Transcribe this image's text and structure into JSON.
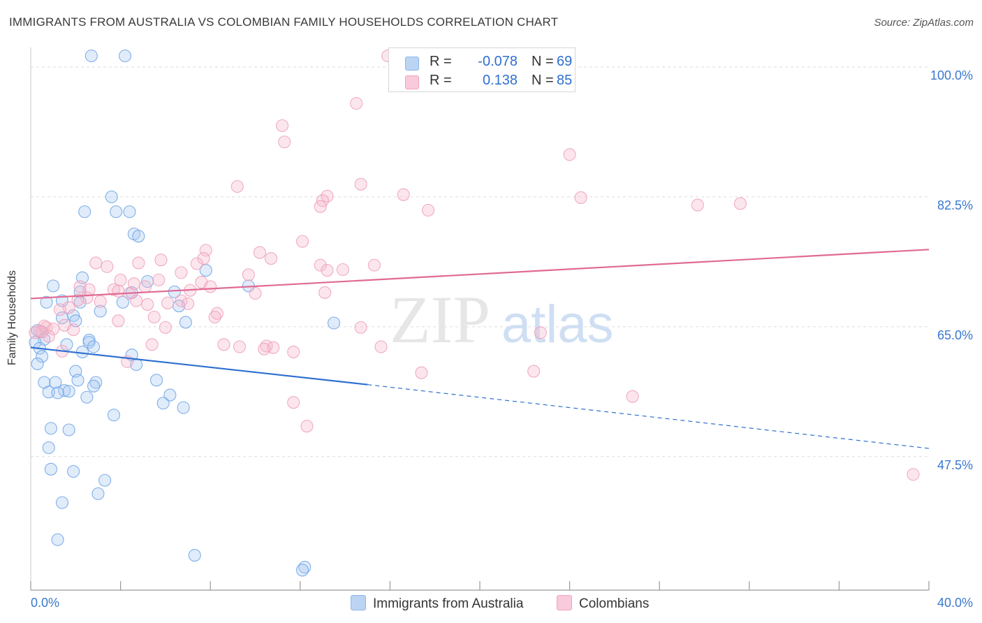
{
  "title": "IMMIGRANTS FROM AUSTRALIA VS COLOMBIAN FAMILY HOUSEHOLDS CORRELATION CHART",
  "source": "Source: ZipAtlas.com",
  "watermark": {
    "zip": "ZIP",
    "atlas": "atlas"
  },
  "legend": {
    "rows": [
      {
        "r_label": "R =",
        "r_value": "-0.078",
        "n_label": "N =",
        "n_value": "69",
        "color": "#a9c8f0"
      },
      {
        "r_label": "R =",
        "r_value": "0.138",
        "n_label": "N =",
        "n_value": "85",
        "color": "#f6b6cb"
      }
    ]
  },
  "bottom_legend": [
    "Immigrants from Australia",
    "Colombians"
  ],
  "colors": {
    "blue": "#6aa3e6",
    "blue_line": "#2d6fd0",
    "pink": "#ee9fb8",
    "pink_line": "#e06a93",
    "tick_text": "#3a78cf",
    "grid": "#dedede"
  },
  "chart_data": {
    "type": "scatter",
    "title": "IMMIGRANTS FROM AUSTRALIA VS COLOMBIAN FAMILY HOUSEHOLDS CORRELATION CHART",
    "xlabel": "",
    "ylabel": "Family Households",
    "xlim": [
      0,
      40
    ],
    "ylim": [
      29.5,
      101.5
    ],
    "x_tick_labels": [
      "0.0%",
      "40.0%"
    ],
    "y_ticks": [
      47.5,
      65.0,
      82.5,
      100.0
    ],
    "y_tick_labels": [
      "47.5%",
      "65.0%",
      "82.5%",
      "100.0%"
    ],
    "grid": true,
    "series": [
      {
        "name": "Immigrants from Australia",
        "color": "#6aa3e6",
        "r": -0.078,
        "n": 69,
        "trend": {
          "x0": 0,
          "y0": 62.2,
          "x1": 15,
          "y1": 57.2,
          "dash_x1": 40,
          "dash_y1": 48.6
        },
        "points": [
          [
            2.7,
            101.5
          ],
          [
            4.2,
            101.5
          ],
          [
            3.6,
            82.5
          ],
          [
            2.4,
            80.5
          ],
          [
            3.8,
            80.5
          ],
          [
            4.4,
            80.5
          ],
          [
            4.6,
            77.5
          ],
          [
            4.8,
            77.2
          ],
          [
            7.8,
            72.6
          ],
          [
            2.3,
            71.6
          ],
          [
            5.2,
            71.1
          ],
          [
            1.0,
            70.5
          ],
          [
            9.7,
            70.5
          ],
          [
            2.2,
            69.7
          ],
          [
            4.5,
            69.6
          ],
          [
            6.4,
            69.7
          ],
          [
            1.4,
            68.5
          ],
          [
            2.2,
            68.3
          ],
          [
            4.1,
            68.3
          ],
          [
            6.6,
            67.8
          ],
          [
            0.7,
            68.3
          ],
          [
            3.1,
            67.1
          ],
          [
            1.9,
            66.5
          ],
          [
            1.4,
            66.2
          ],
          [
            2.0,
            65.8
          ],
          [
            6.9,
            65.6
          ],
          [
            13.5,
            65.5
          ],
          [
            0.3,
            64.5
          ],
          [
            0.5,
            64.3
          ],
          [
            0.6,
            63.3
          ],
          [
            2.6,
            63.2
          ],
          [
            2.6,
            62.9
          ],
          [
            1.6,
            62.6
          ],
          [
            0.2,
            62.9
          ],
          [
            2.8,
            62.3
          ],
          [
            0.4,
            62.1
          ],
          [
            2.3,
            61.6
          ],
          [
            4.5,
            61.2
          ],
          [
            0.5,
            61.0
          ],
          [
            0.3,
            60.0
          ],
          [
            4.7,
            59.9
          ],
          [
            2.0,
            59.0
          ],
          [
            2.1,
            57.8
          ],
          [
            5.6,
            57.8
          ],
          [
            0.6,
            57.5
          ],
          [
            1.1,
            57.5
          ],
          [
            2.9,
            57.5
          ],
          [
            2.8,
            57.0
          ],
          [
            1.5,
            56.4
          ],
          [
            1.7,
            56.3
          ],
          [
            0.8,
            56.2
          ],
          [
            1.2,
            56.1
          ],
          [
            6.2,
            55.8
          ],
          [
            2.5,
            55.5
          ],
          [
            5.9,
            54.7
          ],
          [
            6.8,
            54.1
          ],
          [
            3.7,
            53.1
          ],
          [
            0.9,
            51.3
          ],
          [
            1.7,
            51.1
          ],
          [
            0.8,
            48.7
          ],
          [
            0.9,
            45.8
          ],
          [
            1.9,
            45.5
          ],
          [
            3.3,
            44.3
          ],
          [
            3.0,
            42.5
          ],
          [
            1.4,
            41.3
          ],
          [
            1.2,
            36.3
          ],
          [
            7.3,
            34.2
          ],
          [
            12.2,
            32.6
          ],
          [
            12.1,
            32.2
          ]
        ]
      },
      {
        "name": "Colombians",
        "color": "#ee9fb8",
        "r": 0.138,
        "n": 85,
        "trend": {
          "x0": 0,
          "y0": 68.8,
          "x1": 40,
          "y1": 75.4
        },
        "points": [
          [
            15.9,
            101.5
          ],
          [
            14.5,
            95.1
          ],
          [
            11.2,
            92.1
          ],
          [
            11.3,
            89.9
          ],
          [
            24.0,
            88.2
          ],
          [
            14.7,
            84.2
          ],
          [
            9.2,
            83.9
          ],
          [
            16.6,
            82.8
          ],
          [
            13.2,
            82.6
          ],
          [
            13.0,
            82.0
          ],
          [
            24.5,
            82.4
          ],
          [
            12.9,
            81.2
          ],
          [
            17.7,
            80.7
          ],
          [
            29.7,
            81.4
          ],
          [
            31.6,
            81.6
          ],
          [
            12.1,
            76.5
          ],
          [
            7.8,
            75.3
          ],
          [
            10.2,
            75.0
          ],
          [
            7.7,
            74.2
          ],
          [
            10.7,
            74.2
          ],
          [
            5.8,
            74.0
          ],
          [
            4.8,
            73.6
          ],
          [
            7.4,
            73.5
          ],
          [
            2.9,
            73.6
          ],
          [
            3.4,
            73.1
          ],
          [
            12.9,
            73.3
          ],
          [
            15.3,
            73.3
          ],
          [
            13.9,
            72.7
          ],
          [
            13.2,
            72.6
          ],
          [
            6.7,
            72.3
          ],
          [
            9.7,
            72.0
          ],
          [
            4.0,
            71.3
          ],
          [
            5.7,
            71.3
          ],
          [
            7.6,
            71.0
          ],
          [
            4.6,
            70.8
          ],
          [
            5.1,
            70.4
          ],
          [
            8.0,
            70.4
          ],
          [
            2.2,
            70.4
          ],
          [
            2.6,
            70.0
          ],
          [
            3.7,
            70.0
          ],
          [
            3.9,
            69.8
          ],
          [
            7.1,
            69.9
          ],
          [
            4.4,
            69.5
          ],
          [
            13.1,
            69.6
          ],
          [
            10.0,
            69.5
          ],
          [
            2.5,
            68.9
          ],
          [
            2.1,
            68.6
          ],
          [
            4.7,
            68.5
          ],
          [
            3.1,
            68.4
          ],
          [
            6.7,
            68.5
          ],
          [
            7.0,
            68.1
          ],
          [
            6.1,
            68.2
          ],
          [
            5.2,
            68.0
          ],
          [
            1.7,
            67.6
          ],
          [
            1.3,
            67.3
          ],
          [
            8.3,
            66.8
          ],
          [
            8.2,
            66.3
          ],
          [
            5.5,
            66.3
          ],
          [
            3.9,
            65.8
          ],
          [
            1.5,
            65.2
          ],
          [
            0.6,
            65.1
          ],
          [
            0.7,
            64.9
          ],
          [
            14.7,
            64.9
          ],
          [
            1.0,
            64.7
          ],
          [
            1.9,
            64.6
          ],
          [
            0.5,
            64.3
          ],
          [
            0.2,
            64.2
          ],
          [
            0.4,
            64.4
          ],
          [
            0.8,
            63.7
          ],
          [
            22.7,
            64.2
          ],
          [
            6.0,
            64.9
          ],
          [
            5.4,
            62.6
          ],
          [
            8.6,
            62.6
          ],
          [
            9.3,
            62.3
          ],
          [
            10.5,
            62.4
          ],
          [
            10.8,
            62.2
          ],
          [
            10.4,
            62.0
          ],
          [
            11.7,
            61.6
          ],
          [
            15.6,
            62.3
          ],
          [
            1.4,
            61.7
          ],
          [
            4.3,
            60.3
          ],
          [
            17.4,
            58.8
          ],
          [
            22.4,
            59.0
          ],
          [
            26.8,
            55.6
          ],
          [
            11.7,
            54.8
          ],
          [
            12.3,
            51.6
          ],
          [
            39.3,
            45.1
          ]
        ]
      }
    ]
  }
}
